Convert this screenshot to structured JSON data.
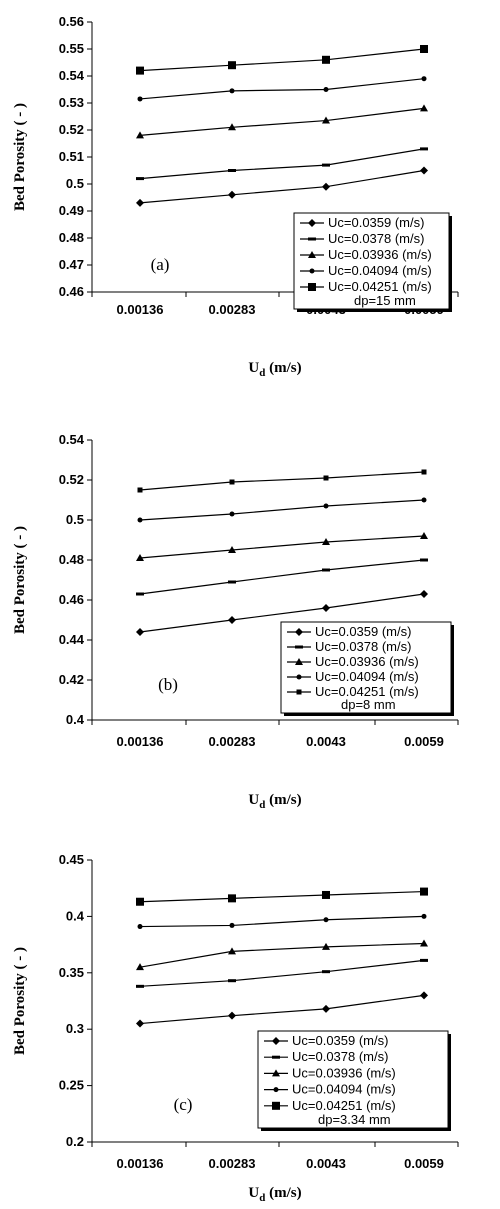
{
  "chart_data": [
    {
      "type": "line",
      "panel_label": "(a)",
      "xlabel": "U",
      "xlabel_sub": "d",
      "xlabel_unit": " (m/s)",
      "ylabel": "Bed Porosity ( - )",
      "categories": [
        "0.00136",
        "0.00283",
        "0.0043",
        "0.0059"
      ],
      "ylim": [
        0.46,
        0.56
      ],
      "yticks": [
        "0.46",
        "0.47",
        "0.48",
        "0.49",
        "0.5",
        "0.51",
        "0.52",
        "0.53",
        "0.54",
        "0.55",
        "0.56"
      ],
      "legend_note": "dp=15 mm",
      "series": [
        {
          "name": "Uc=0.0359 (m/s)",
          "marker": "diamond",
          "values": [
            0.493,
            0.496,
            0.499,
            0.505
          ]
        },
        {
          "name": "Uc=0.0378 (m/s)",
          "marker": "dash",
          "values": [
            0.502,
            0.505,
            0.507,
            0.513
          ]
        },
        {
          "name": "Uc=0.03936 (m/s)",
          "marker": "triangle",
          "values": [
            0.518,
            0.521,
            0.5235,
            0.528
          ]
        },
        {
          "name": "Uc=0.04094 (m/s)",
          "marker": "dot",
          "values": [
            0.5315,
            0.5345,
            0.535,
            0.539
          ]
        },
        {
          "name": "Uc=0.04251 (m/s)",
          "marker": "square",
          "values": [
            0.542,
            0.544,
            0.546,
            0.55
          ]
        }
      ]
    },
    {
      "type": "line",
      "panel_label": "(b)",
      "xlabel": "U",
      "xlabel_sub": "d",
      "xlabel_unit": " (m/s)",
      "ylabel": "Bed Porosity ( - )",
      "categories": [
        "0.00136",
        "0.00283",
        "0.0043",
        "0.0059"
      ],
      "ylim": [
        0.4,
        0.54
      ],
      "yticks": [
        "0.4",
        "0.42",
        "0.44",
        "0.46",
        "0.48",
        "0.5",
        "0.52",
        "0.54"
      ],
      "legend_note": "dp=8 mm",
      "series": [
        {
          "name": "Uc=0.0359 (m/s)",
          "marker": "diamond",
          "values": [
            0.444,
            0.45,
            0.456,
            0.463
          ]
        },
        {
          "name": "Uc=0.0378 (m/s)",
          "marker": "dash",
          "values": [
            0.463,
            0.469,
            0.475,
            0.48
          ]
        },
        {
          "name": "Uc=0.03936 (m/s)",
          "marker": "triangle",
          "values": [
            0.481,
            0.485,
            0.489,
            0.492
          ]
        },
        {
          "name": "Uc=0.04094 (m/s)",
          "marker": "dot",
          "values": [
            0.5,
            0.503,
            0.507,
            0.51
          ]
        },
        {
          "name": "Uc=0.04251 (m/s)",
          "marker": "smallsquare",
          "values": [
            0.515,
            0.519,
            0.521,
            0.524
          ]
        }
      ]
    },
    {
      "type": "line",
      "panel_label": "(c)",
      "xlabel": "U",
      "xlabel_sub": "d",
      "xlabel_unit": " (m/s)",
      "ylabel": "Bed Porosity ( - )",
      "categories": [
        "0.00136",
        "0.00283",
        "0.0043",
        "0.0059"
      ],
      "ylim": [
        0.2,
        0.45
      ],
      "yticks": [
        "0.2",
        "0.25",
        "0.3",
        "0.35",
        "0.4",
        "0.45"
      ],
      "legend_note": "dp=3.34 mm",
      "series": [
        {
          "name": "Uc=0.0359 (m/s)",
          "marker": "diamond",
          "values": [
            0.305,
            0.312,
            0.318,
            0.33
          ]
        },
        {
          "name": "Uc=0.0378 (m/s)",
          "marker": "dash",
          "values": [
            0.338,
            0.343,
            0.351,
            0.361
          ]
        },
        {
          "name": "Uc=0.03936 (m/s)",
          "marker": "triangle",
          "values": [
            0.355,
            0.369,
            0.373,
            0.376
          ]
        },
        {
          "name": "Uc=0.04094 (m/s)",
          "marker": "dot",
          "values": [
            0.391,
            0.392,
            0.397,
            0.4
          ]
        },
        {
          "name": "Uc=0.04251 (m/s)",
          "marker": "square",
          "values": [
            0.413,
            0.416,
            0.419,
            0.422
          ]
        }
      ]
    }
  ]
}
